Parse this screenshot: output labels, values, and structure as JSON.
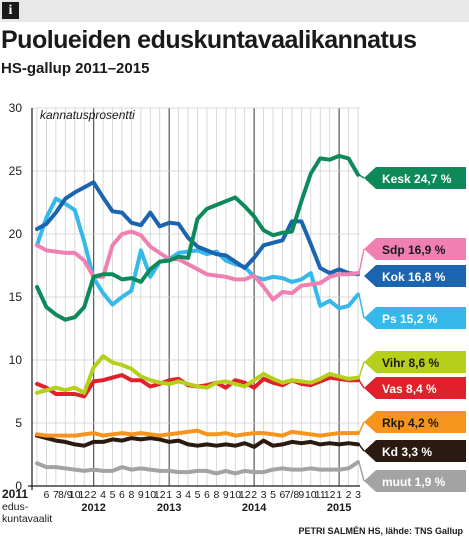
{
  "header": {
    "info_icon": "info-icon",
    "info_glyph": "i"
  },
  "title": "Puolueiden eduskuntavaalikannatus",
  "subtitle": "HS-gallup 2011–2015",
  "credit": "PETRI SALMÉN HS, lähde: TNS Gallup",
  "chart_data": {
    "type": "line",
    "title": "Puolueiden eduskuntavaalikannatus",
    "subtitle": "HS-gallup 2011–2015",
    "ylabel": "kannatusprosentti",
    "xlabel": "",
    "ylim": [
      0,
      30
    ],
    "yticks": [
      0,
      5,
      10,
      15,
      20,
      25,
      30
    ],
    "grid": true,
    "legend": "right",
    "x": [
      "2011 eduskuntavaalit",
      "6",
      "7",
      "8/9",
      "10",
      "12",
      "2",
      "4",
      "5",
      "6",
      "8",
      "9",
      "10",
      "12",
      "1",
      "3",
      "4",
      "5",
      "6",
      "8",
      "9",
      "10",
      "12",
      "2",
      "3",
      "5",
      "6",
      "7/8",
      "9",
      "10",
      "11",
      "12",
      "1",
      "2",
      "3"
    ],
    "x_axis_labels": [
      {
        "text": "2011",
        "i": 0,
        "row": 0
      },
      {
        "text": "edus-",
        "i": 0,
        "row": 1
      },
      {
        "text": "kuntavaalit",
        "i": 0,
        "row": 2
      },
      {
        "text": "6",
        "i": 1,
        "row": 0
      },
      {
        "text": "7",
        "i": 2,
        "row": 0
      },
      {
        "text": "8/9",
        "i": 3,
        "row": 0
      },
      {
        "text": "10",
        "i": 4,
        "row": 0
      },
      {
        "text": "12",
        "i": 5,
        "row": 0
      },
      {
        "text": "2",
        "i": 6,
        "row": 0
      },
      {
        "text": "2012",
        "i": 6,
        "row": 1
      },
      {
        "text": "4",
        "i": 7,
        "row": 0
      },
      {
        "text": "5",
        "i": 8,
        "row": 0
      },
      {
        "text": "6",
        "i": 9,
        "row": 0
      },
      {
        "text": "8",
        "i": 10,
        "row": 0
      },
      {
        "text": "9",
        "i": 11,
        "row": 0
      },
      {
        "text": "10",
        "i": 12,
        "row": 0
      },
      {
        "text": "12",
        "i": 13,
        "row": 0
      },
      {
        "text": "1",
        "i": 14,
        "row": 0
      },
      {
        "text": "2013",
        "i": 14,
        "row": 1
      },
      {
        "text": "3",
        "i": 15,
        "row": 0
      },
      {
        "text": "4",
        "i": 16,
        "row": 0
      },
      {
        "text": "5",
        "i": 17,
        "row": 0
      },
      {
        "text": "6",
        "i": 18,
        "row": 0
      },
      {
        "text": "8",
        "i": 19,
        "row": 0
      },
      {
        "text": "9",
        "i": 20,
        "row": 0
      },
      {
        "text": "10",
        "i": 21,
        "row": 0
      },
      {
        "text": "12",
        "i": 22,
        "row": 0
      },
      {
        "text": "2",
        "i": 23,
        "row": 0
      },
      {
        "text": "2014",
        "i": 23,
        "row": 1
      },
      {
        "text": "3",
        "i": 24,
        "row": 0
      },
      {
        "text": "5",
        "i": 25,
        "row": 0
      },
      {
        "text": "6",
        "i": 26,
        "row": 0
      },
      {
        "text": "7/8",
        "i": 27,
        "row": 0
      },
      {
        "text": "9",
        "i": 28,
        "row": 0
      },
      {
        "text": "10",
        "i": 29,
        "row": 0
      },
      {
        "text": "11",
        "i": 30,
        "row": 0
      },
      {
        "text": "12",
        "i": 31,
        "row": 0
      },
      {
        "text": "1",
        "i": 32,
        "row": 0
      },
      {
        "text": "2015",
        "i": 32,
        "row": 1
      },
      {
        "text": "2",
        "i": 33,
        "row": 0
      },
      {
        "text": "3",
        "i": 34,
        "row": 0
      }
    ],
    "year_boundaries": [
      6,
      14,
      23,
      32
    ],
    "series": [
      {
        "name": "Kesk",
        "label": "Kesk 24,7 %",
        "color": "#0e8a5a",
        "labelText": "#ffffff",
        "values": [
          15.8,
          14.2,
          13.6,
          13.2,
          13.4,
          14.2,
          16.6,
          16.8,
          16.8,
          16.4,
          16.5,
          16.2,
          17.2,
          17.8,
          17.9,
          18.2,
          18.1,
          21.2,
          22.0,
          22.3,
          22.6,
          22.9,
          22.2,
          21.4,
          20.3,
          19.9,
          20.1,
          20.2,
          22.6,
          24.8,
          26.0,
          25.9,
          26.2,
          26.0,
          24.7
        ]
      },
      {
        "name": "Sdp",
        "label": "Sdp 16,9 %",
        "color": "#f07fb2",
        "labelText": "#1a1a1a",
        "values": [
          19.1,
          18.7,
          18.6,
          18.5,
          18.5,
          17.9,
          16.6,
          16.6,
          19.1,
          20.0,
          20.2,
          19.9,
          19.0,
          18.5,
          18.0,
          18.0,
          17.6,
          17.2,
          16.8,
          16.7,
          16.6,
          16.4,
          16.4,
          16.7,
          15.8,
          14.8,
          15.4,
          15.3,
          15.9,
          16.0,
          16.1,
          16.6,
          16.8,
          16.8,
          16.9
        ]
      },
      {
        "name": "Kok",
        "label": "Kok 16,8 %",
        "color": "#1a64b0",
        "labelText": "#ffffff",
        "values": [
          20.4,
          20.8,
          21.7,
          22.8,
          23.3,
          23.7,
          24.1,
          22.9,
          21.8,
          21.7,
          20.9,
          20.7,
          21.7,
          20.6,
          20.9,
          20.8,
          19.7,
          19.0,
          18.7,
          18.4,
          18.3,
          17.8,
          17.3,
          18.1,
          19.1,
          19.3,
          19.5,
          21.0,
          21.0,
          19.2,
          17.3,
          16.9,
          17.2,
          16.9,
          16.8
        ]
      },
      {
        "name": "Ps",
        "label": "Ps 15,2 %",
        "color": "#35b8ea",
        "labelText": "#ffffff",
        "values": [
          19.1,
          21.3,
          22.8,
          22.4,
          21.9,
          19.4,
          16.5,
          15.3,
          14.4,
          15.0,
          15.5,
          18.7,
          16.6,
          17.8,
          18.0,
          18.5,
          18.6,
          18.7,
          18.4,
          18.6,
          17.9,
          17.6,
          17.4,
          16.6,
          16.4,
          16.6,
          16.5,
          16.2,
          16.4,
          16.9,
          14.3,
          14.7,
          14.1,
          14.3,
          15.2
        ]
      },
      {
        "name": "Vihr",
        "label": "Vihr 8,6 %",
        "color": "#b5cf1a",
        "labelText": "#1a1a1a",
        "values": [
          7.4,
          7.6,
          7.8,
          7.6,
          7.8,
          7.4,
          9.4,
          10.3,
          9.8,
          9.6,
          9.3,
          8.7,
          8.4,
          8.2,
          8.1,
          8.3,
          8.1,
          7.9,
          7.8,
          8.2,
          8.3,
          8.1,
          7.9,
          8.4,
          8.9,
          8.5,
          8.2,
          8.4,
          8.3,
          8.2,
          8.5,
          8.9,
          8.7,
          8.5,
          8.6
        ]
      },
      {
        "name": "Vas",
        "label": "Vas 8,4 %",
        "color": "#e0202a",
        "labelText": "#ffffff",
        "values": [
          8.1,
          7.8,
          7.3,
          7.3,
          7.3,
          7.1,
          8.3,
          8.4,
          8.6,
          8.8,
          8.4,
          8.4,
          7.9,
          8.1,
          8.4,
          8.5,
          8.0,
          7.9,
          8.0,
          8.2,
          7.8,
          8.4,
          8.2,
          7.8,
          8.5,
          8.2,
          8.0,
          8.4,
          8.1,
          8.0,
          8.3,
          8.6,
          8.5,
          8.4,
          8.4
        ]
      },
      {
        "name": "Rkp",
        "label": "Rkp 4,2 %",
        "color": "#f7941d",
        "labelText": "#1a1a1a",
        "values": [
          4.1,
          4.0,
          4.0,
          4.0,
          4.0,
          4.1,
          4.2,
          4.0,
          4.1,
          4.2,
          4.1,
          4.2,
          4.1,
          4.0,
          4.1,
          4.2,
          4.3,
          4.4,
          4.1,
          4.1,
          4.2,
          4.0,
          4.1,
          4.2,
          4.2,
          4.1,
          4.0,
          4.3,
          4.2,
          4.1,
          4.0,
          4.1,
          4.2,
          4.2,
          4.2
        ]
      },
      {
        "name": "Kd",
        "label": "Kd 3,3 %",
        "color": "#2b1a10",
        "labelText": "#ffffff",
        "values": [
          4.0,
          3.8,
          3.6,
          3.5,
          3.3,
          3.2,
          3.5,
          3.5,
          3.7,
          3.6,
          3.8,
          3.7,
          3.8,
          3.7,
          3.5,
          3.6,
          3.3,
          3.2,
          3.3,
          3.2,
          3.3,
          3.2,
          3.4,
          3.1,
          3.6,
          3.2,
          3.3,
          3.5,
          3.4,
          3.5,
          3.3,
          3.4,
          3.3,
          3.4,
          3.3
        ]
      },
      {
        "name": "muut",
        "label": "muut 1,9 %",
        "color": "#a3a3a3",
        "labelText": "#ffffff",
        "values": [
          1.8,
          1.5,
          1.5,
          1.4,
          1.3,
          1.2,
          1.3,
          1.2,
          1.2,
          1.5,
          1.3,
          1.4,
          1.3,
          1.2,
          1.2,
          1.1,
          1.1,
          1.2,
          1.2,
          1.0,
          1.2,
          1.0,
          1.2,
          1.1,
          1.1,
          1.3,
          1.4,
          1.3,
          1.3,
          1.4,
          1.3,
          1.3,
          1.3,
          1.4,
          1.9
        ]
      }
    ]
  }
}
